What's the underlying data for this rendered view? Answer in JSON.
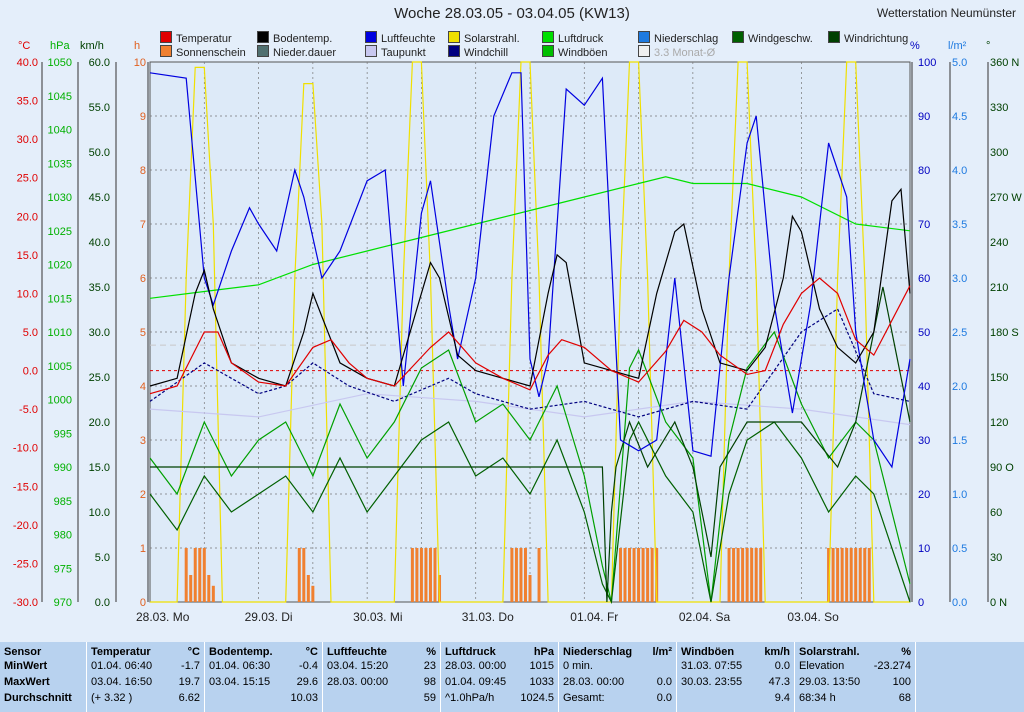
{
  "header": {
    "title": "Woche 28.03.05 - 03.04.05 (KW13)",
    "station": "Wetterstation Neumünster"
  },
  "legend": [
    {
      "label": "Temperatur",
      "color": "#e00000"
    },
    {
      "label": "Bodentemp.",
      "color": "#000000"
    },
    {
      "label": "Luftfeuchte",
      "color": "#0000e0"
    },
    {
      "label": "Solarstrahl.",
      "color": "#f0e000"
    },
    {
      "label": "Luftdruck",
      "color": "#00e000"
    },
    {
      "label": "Niederschlag",
      "color": "#1e7ae0"
    },
    {
      "label": "Windgeschw.",
      "color": "#006000"
    },
    {
      "label": "Windrichtung",
      "color": "#004000"
    },
    {
      "label": "Sonnenschein",
      "color": "#f08030"
    },
    {
      "label": "Nieder.dauer",
      "color": "#507070"
    },
    {
      "label": "Taupunkt",
      "color": "#c8c8f0"
    },
    {
      "label": "Windchill",
      "color": "#000080"
    },
    {
      "label": "Windböen",
      "color": "#00c000"
    },
    {
      "label": "3.3 Monat-Ø",
      "color": "#f0f0f0"
    }
  ],
  "axes": {
    "left_units": {
      "temp": "°C",
      "press": "hPa",
      "wind": "km/h",
      "sun": "h"
    },
    "right_units": {
      "hum": "%",
      "rain": "l/m²",
      "dir": "°"
    },
    "temp_ticks": [
      "40.0",
      "35.0",
      "30.0",
      "25.0",
      "20.0",
      "15.0",
      "10.0",
      "5.0",
      "0.0",
      "-5.0",
      "-10.0",
      "-15.0",
      "-20.0",
      "-25.0",
      "-30.0"
    ],
    "press_ticks": [
      "1050",
      "1045",
      "1040",
      "1035",
      "1030",
      "1025",
      "1020",
      "1015",
      "1010",
      "1005",
      "1000",
      "995",
      "990",
      "985",
      "980",
      "975",
      "970"
    ],
    "wind_ticks": [
      "60.0",
      "55.0",
      "50.0",
      "45.0",
      "40.0",
      "35.0",
      "30.0",
      "25.0",
      "20.0",
      "15.0",
      "10.0",
      "5.0",
      "0.0"
    ],
    "sun_ticks": [
      "10",
      "9",
      "8",
      "7",
      "6",
      "5",
      "4",
      "3",
      "2",
      "1",
      "0"
    ],
    "hum_ticks": [
      "100",
      "90",
      "80",
      "70",
      "60",
      "50",
      "40",
      "30",
      "20",
      "10",
      "0"
    ],
    "rain_ticks": [
      "5.0",
      "4.5",
      "4.0",
      "3.5",
      "3.0",
      "2.5",
      "2.0",
      "1.5",
      "1.0",
      "0.5",
      "0.0"
    ],
    "dir_ticks": [
      "360 N",
      "330",
      "300",
      "270 W",
      "240",
      "210",
      "180 S",
      "150",
      "120",
      "90 O",
      "60",
      "30",
      "0 N"
    ],
    "day_labels": [
      "28.03. Mo",
      "29.03. Di",
      "30.03. Mi",
      "31.03. Do",
      "01.04. Fr",
      "02.04. Sa",
      "03.04. So"
    ]
  },
  "chart_data": {
    "type": "line",
    "x_unit": "hours since 28.03. 00:00",
    "temperature_c": [
      [
        0,
        -3
      ],
      [
        6,
        -2
      ],
      [
        12,
        5
      ],
      [
        15,
        5
      ],
      [
        18,
        1
      ],
      [
        24,
        -1.5
      ],
      [
        30,
        -2
      ],
      [
        36,
        3
      ],
      [
        40,
        4
      ],
      [
        44,
        1
      ],
      [
        48,
        -1
      ],
      [
        54,
        -2
      ],
      [
        62,
        3
      ],
      [
        66,
        5
      ],
      [
        72,
        1
      ],
      [
        78,
        -1
      ],
      [
        84,
        -2.5
      ],
      [
        88,
        2
      ],
      [
        91,
        4
      ],
      [
        96,
        3
      ],
      [
        102,
        0
      ],
      [
        108,
        -1.5
      ],
      [
        114,
        2.5
      ],
      [
        118,
        6.5
      ],
      [
        122,
        5
      ],
      [
        126,
        2
      ],
      [
        132,
        -0.5
      ],
      [
        136,
        0
      ],
      [
        140,
        6
      ],
      [
        144,
        10
      ],
      [
        148,
        12
      ],
      [
        152,
        10
      ],
      [
        156,
        4
      ],
      [
        160,
        2
      ],
      [
        168,
        11
      ]
    ],
    "soil_temp_c": [
      [
        0,
        -2
      ],
      [
        6,
        -1
      ],
      [
        10,
        10
      ],
      [
        12,
        13
      ],
      [
        14,
        8
      ],
      [
        18,
        1
      ],
      [
        24,
        -1
      ],
      [
        30,
        -2
      ],
      [
        34,
        5
      ],
      [
        36,
        10
      ],
      [
        38,
        7
      ],
      [
        42,
        1
      ],
      [
        48,
        -1
      ],
      [
        54,
        -2
      ],
      [
        60,
        10
      ],
      [
        62,
        14
      ],
      [
        64,
        12
      ],
      [
        68,
        2
      ],
      [
        72,
        0
      ],
      [
        78,
        -1
      ],
      [
        84,
        -2
      ],
      [
        88,
        10
      ],
      [
        90,
        15
      ],
      [
        92,
        14
      ],
      [
        96,
        1
      ],
      [
        102,
        0
      ],
      [
        108,
        -1
      ],
      [
        112,
        10
      ],
      [
        116,
        18
      ],
      [
        118,
        19
      ],
      [
        122,
        8
      ],
      [
        126,
        1
      ],
      [
        132,
        0
      ],
      [
        136,
        3
      ],
      [
        140,
        12
      ],
      [
        142,
        20
      ],
      [
        144,
        18
      ],
      [
        148,
        8
      ],
      [
        152,
        3
      ],
      [
        156,
        1
      ],
      [
        160,
        5
      ],
      [
        164,
        22
      ],
      [
        166,
        23.5
      ],
      [
        168,
        10
      ]
    ],
    "humidity_pct": [
      [
        0,
        98
      ],
      [
        8,
        97
      ],
      [
        12,
        60
      ],
      [
        14,
        55
      ],
      [
        18,
        65
      ],
      [
        22,
        73
      ],
      [
        24,
        70
      ],
      [
        28,
        65
      ],
      [
        32,
        80
      ],
      [
        34,
        75
      ],
      [
        38,
        60
      ],
      [
        42,
        65
      ],
      [
        48,
        78
      ],
      [
        52,
        80
      ],
      [
        56,
        40
      ],
      [
        60,
        72
      ],
      [
        62,
        78
      ],
      [
        66,
        55
      ],
      [
        68,
        45
      ],
      [
        72,
        60
      ],
      [
        76,
        90
      ],
      [
        80,
        98
      ],
      [
        82,
        98
      ],
      [
        84,
        45
      ],
      [
        86,
        38
      ],
      [
        88,
        45
      ],
      [
        92,
        95
      ],
      [
        96,
        92
      ],
      [
        100,
        97
      ],
      [
        104,
        30
      ],
      [
        108,
        28
      ],
      [
        112,
        30
      ],
      [
        116,
        60
      ],
      [
        120,
        28
      ],
      [
        124,
        27
      ],
      [
        128,
        60
      ],
      [
        132,
        85
      ],
      [
        134,
        90
      ],
      [
        138,
        55
      ],
      [
        142,
        35
      ],
      [
        146,
        55
      ],
      [
        150,
        85
      ],
      [
        154,
        75
      ],
      [
        156,
        50
      ],
      [
        160,
        30
      ],
      [
        164,
        25
      ],
      [
        168,
        45
      ]
    ],
    "solar_pct": [
      [
        0,
        0
      ],
      [
        6,
        0
      ],
      [
        8,
        60
      ],
      [
        10,
        99
      ],
      [
        12,
        99
      ],
      [
        14,
        70
      ],
      [
        16,
        0
      ],
      [
        30,
        0
      ],
      [
        32,
        60
      ],
      [
        34,
        96
      ],
      [
        36,
        96
      ],
      [
        38,
        70
      ],
      [
        40,
        0
      ],
      [
        54,
        0
      ],
      [
        56,
        60
      ],
      [
        58,
        100
      ],
      [
        60,
        100
      ],
      [
        62,
        60
      ],
      [
        64,
        0
      ],
      [
        78,
        0
      ],
      [
        80,
        60
      ],
      [
        82,
        100
      ],
      [
        84,
        100
      ],
      [
        86,
        60
      ],
      [
        88,
        0
      ],
      [
        102,
        0
      ],
      [
        104,
        60
      ],
      [
        106,
        100
      ],
      [
        108,
        100
      ],
      [
        110,
        60
      ],
      [
        112,
        0
      ],
      [
        126,
        0
      ],
      [
        128,
        60
      ],
      [
        130,
        100
      ],
      [
        132,
        100
      ],
      [
        134,
        60
      ],
      [
        136,
        0
      ],
      [
        150,
        0
      ],
      [
        152,
        60
      ],
      [
        154,
        100
      ],
      [
        156,
        100
      ],
      [
        158,
        60
      ],
      [
        160,
        0
      ],
      [
        168,
        0
      ]
    ],
    "pressure_hpa": [
      [
        0,
        1015
      ],
      [
        12,
        1016
      ],
      [
        24,
        1017
      ],
      [
        36,
        1020
      ],
      [
        48,
        1022
      ],
      [
        60,
        1024
      ],
      [
        72,
        1026
      ],
      [
        84,
        1028
      ],
      [
        96,
        1030
      ],
      [
        108,
        1032
      ],
      [
        114,
        1033
      ],
      [
        120,
        1032
      ],
      [
        132,
        1032
      ],
      [
        144,
        1030
      ],
      [
        156,
        1026
      ],
      [
        168,
        1025
      ]
    ],
    "windspeed_kmh": [
      [
        0,
        12
      ],
      [
        6,
        8
      ],
      [
        12,
        14
      ],
      [
        18,
        10
      ],
      [
        24,
        12
      ],
      [
        30,
        14
      ],
      [
        36,
        10
      ],
      [
        42,
        16
      ],
      [
        48,
        10
      ],
      [
        54,
        14
      ],
      [
        60,
        18
      ],
      [
        66,
        20
      ],
      [
        72,
        14
      ],
      [
        78,
        16
      ],
      [
        84,
        12
      ],
      [
        90,
        18
      ],
      [
        96,
        10
      ],
      [
        100,
        2
      ],
      [
        102,
        0
      ],
      [
        106,
        18
      ],
      [
        108,
        20
      ],
      [
        114,
        14
      ],
      [
        120,
        10
      ],
      [
        124,
        0
      ],
      [
        128,
        12
      ],
      [
        132,
        18
      ],
      [
        138,
        20
      ],
      [
        144,
        16
      ],
      [
        150,
        10
      ],
      [
        156,
        14
      ],
      [
        160,
        12
      ],
      [
        164,
        6
      ],
      [
        168,
        0
      ]
    ],
    "gust_kmh": [
      [
        0,
        16
      ],
      [
        6,
        12
      ],
      [
        12,
        20
      ],
      [
        18,
        14
      ],
      [
        24,
        18
      ],
      [
        30,
        20
      ],
      [
        36,
        14
      ],
      [
        42,
        22
      ],
      [
        48,
        16
      ],
      [
        54,
        20
      ],
      [
        60,
        26
      ],
      [
        66,
        28
      ],
      [
        72,
        20
      ],
      [
        78,
        22
      ],
      [
        84,
        18
      ],
      [
        90,
        24
      ],
      [
        96,
        14
      ],
      [
        100,
        4
      ],
      [
        102,
        0
      ],
      [
        106,
        26
      ],
      [
        108,
        28
      ],
      [
        114,
        20
      ],
      [
        120,
        16
      ],
      [
        124,
        0
      ],
      [
        128,
        18
      ],
      [
        132,
        26
      ],
      [
        138,
        30
      ],
      [
        144,
        22
      ],
      [
        150,
        16
      ],
      [
        156,
        20
      ],
      [
        160,
        18
      ],
      [
        164,
        10
      ],
      [
        168,
        2
      ]
    ],
    "wind_dir_deg": [
      [
        0,
        90
      ],
      [
        100,
        90
      ],
      [
        101,
        0
      ],
      [
        102,
        60
      ],
      [
        103,
        90
      ],
      [
        106,
        120
      ],
      [
        110,
        90
      ],
      [
        116,
        120
      ],
      [
        120,
        90
      ],
      [
        124,
        30
      ],
      [
        126,
        90
      ],
      [
        132,
        120
      ],
      [
        144,
        120
      ],
      [
        152,
        90
      ],
      [
        156,
        120
      ],
      [
        160,
        180
      ],
      [
        162,
        210
      ],
      [
        164,
        180
      ],
      [
        168,
        120
      ]
    ],
    "dewpoint_c": [
      [
        0,
        -4
      ],
      [
        12,
        1
      ],
      [
        18,
        -1
      ],
      [
        24,
        -3
      ],
      [
        30,
        -2
      ],
      [
        36,
        1
      ],
      [
        44,
        -2
      ],
      [
        54,
        -4
      ],
      [
        66,
        -1
      ],
      [
        72,
        -3
      ],
      [
        84,
        -5
      ],
      [
        96,
        -4
      ],
      [
        108,
        -6
      ],
      [
        120,
        -4
      ],
      [
        132,
        -5
      ],
      [
        144,
        5
      ],
      [
        152,
        8
      ],
      [
        160,
        -3
      ],
      [
        168,
        -4
      ]
    ],
    "dewpoint_light_c": [
      [
        0,
        -5
      ],
      [
        24,
        -6
      ],
      [
        48,
        -3
      ],
      [
        72,
        -4
      ],
      [
        96,
        -6
      ],
      [
        120,
        -4
      ],
      [
        144,
        -5
      ],
      [
        168,
        -7
      ]
    ],
    "sunshine_h": [
      [
        8,
        1
      ],
      [
        9,
        0.5
      ],
      [
        10,
        1
      ],
      [
        11,
        1
      ],
      [
        12,
        1
      ],
      [
        13,
        0.5
      ],
      [
        14,
        0.3
      ],
      [
        33,
        1
      ],
      [
        34,
        1
      ],
      [
        35,
        0.5
      ],
      [
        36,
        0.3
      ],
      [
        58,
        1
      ],
      [
        59,
        1
      ],
      [
        60,
        1
      ],
      [
        61,
        1
      ],
      [
        62,
        1
      ],
      [
        63,
        1
      ],
      [
        64,
        0.5
      ],
      [
        80,
        1
      ],
      [
        81,
        1
      ],
      [
        82,
        1
      ],
      [
        83,
        1
      ],
      [
        84,
        0.5
      ],
      [
        86,
        1
      ],
      [
        104,
        1
      ],
      [
        105,
        1
      ],
      [
        106,
        1
      ],
      [
        107,
        1
      ],
      [
        108,
        1
      ],
      [
        109,
        1
      ],
      [
        110,
        1
      ],
      [
        111,
        1
      ],
      [
        112,
        1
      ],
      [
        128,
        1
      ],
      [
        129,
        1
      ],
      [
        130,
        1
      ],
      [
        131,
        1
      ],
      [
        132,
        1
      ],
      [
        133,
        1
      ],
      [
        134,
        1
      ],
      [
        135,
        1
      ],
      [
        150,
        1
      ],
      [
        151,
        1
      ],
      [
        152,
        1
      ],
      [
        153,
        1
      ],
      [
        154,
        1
      ],
      [
        155,
        1
      ],
      [
        156,
        1
      ],
      [
        157,
        1
      ],
      [
        158,
        1
      ],
      [
        159,
        1
      ]
    ],
    "monthly_avg_temp_c": 3.3,
    "xlim": [
      0,
      168
    ],
    "temp_lim": [
      -30,
      40
    ],
    "press_lim": [
      970,
      1050
    ],
    "wind_lim": [
      0,
      60
    ],
    "hum_lim": [
      0,
      100
    ],
    "dir_lim": [
      0,
      360
    ]
  },
  "stats": {
    "sensor": {
      "header": "Sensor",
      "rows": [
        "MinWert",
        "MaxWert",
        "Durchschnitt"
      ]
    },
    "columns": [
      {
        "name": "Temperatur",
        "unit": "°C",
        "rows": [
          [
            "01.04.  06:40",
            "-1.7"
          ],
          [
            "03.04.  16:50",
            "19.7"
          ],
          [
            "(+ 3.32 )",
            "6.62"
          ]
        ]
      },
      {
        "name": "Bodentemp.",
        "unit": "°C",
        "rows": [
          [
            "01.04.  06:30",
            "-0.4"
          ],
          [
            "03.04.  15:15",
            "29.6"
          ],
          [
            "",
            "10.03"
          ]
        ]
      },
      {
        "name": "Luftfeuchte",
        "unit": "%",
        "rows": [
          [
            "03.04.  15:20",
            "23"
          ],
          [
            "28.03.  00:00",
            "98"
          ],
          [
            "",
            "59"
          ]
        ]
      },
      {
        "name": "Luftdruck",
        "unit": "hPa",
        "rows": [
          [
            "28.03.  00:00",
            "1015"
          ],
          [
            "01.04.  09:45",
            "1033"
          ],
          [
            "^1.0hPa/h",
            "1024.5"
          ]
        ]
      },
      {
        "name": "Niederschlag",
        "unit": "l/m²",
        "rows": [
          [
            "0 min.",
            ""
          ],
          [
            "28.03.  00:00",
            "0.0"
          ],
          [
            "Gesamt:",
            "0.0"
          ]
        ]
      },
      {
        "name": "Windböen",
        "unit": "km/h",
        "rows": [
          [
            "31.03.  07:55",
            "0.0"
          ],
          [
            "30.03.  23:55",
            "47.3"
          ],
          [
            "",
            "9.4"
          ]
        ]
      },
      {
        "name": "Solarstrahl.",
        "unit": "%",
        "rows": [
          [
            "Elevation",
            "-23.274"
          ],
          [
            "29.03.  13:50",
            "100"
          ],
          [
            "68:34 h",
            "68"
          ]
        ]
      }
    ]
  }
}
